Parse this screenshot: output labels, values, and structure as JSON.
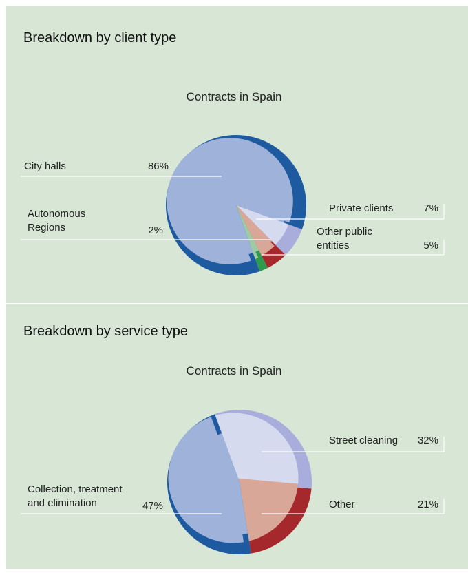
{
  "chart_data": [
    {
      "type": "pie",
      "heading": "Breakdown by client type",
      "title": "Contracts in Spain",
      "categories": [
        "Private clients",
        "Other public entities",
        "Autonomous Regions",
        "City halls"
      ],
      "values": [
        7,
        5,
        2,
        86
      ],
      "value_labels": [
        "7%",
        "5%",
        "2%",
        "86%"
      ],
      "colors": [
        "#d6daee",
        "#d8a797",
        "#9ecaa6",
        "#9fb2da"
      ],
      "rim_colors": [
        "#a9addb",
        "#a5282c",
        "#2e9a4e",
        "#1e5aa0"
      ]
    },
    {
      "type": "pie",
      "heading": "Breakdown by service type",
      "title": "Contracts in Spain",
      "categories": [
        "Street cleaning",
        "Other",
        "Collection, treatment and elimination"
      ],
      "values": [
        32,
        21,
        47
      ],
      "value_labels": [
        "32%",
        "21%",
        "47%"
      ],
      "colors": [
        "#d6daee",
        "#d8a797",
        "#9fb2da"
      ],
      "rim_colors": [
        "#a9addb",
        "#a5282c",
        "#1e5aa0"
      ]
    }
  ]
}
